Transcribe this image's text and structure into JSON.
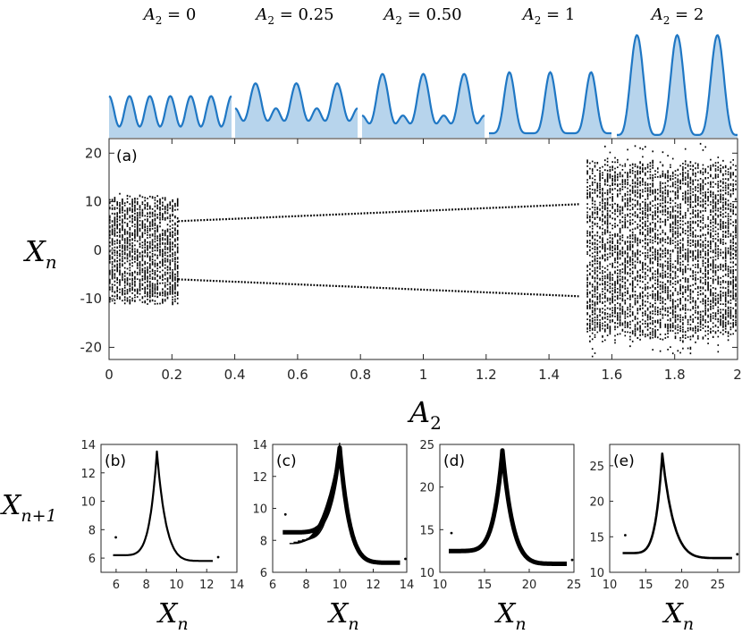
{
  "chart_data": [
    {
      "id": "bifurcation",
      "type": "scatter",
      "panel_label": "(a)",
      "xlabel": "A2",
      "ylabel": "Xn",
      "xlim": [
        0,
        2
      ],
      "ylim": [
        -22.5,
        23
      ],
      "xticks": [
        "0",
        "0.2",
        "0.4",
        "0.6",
        "0.8",
        "1",
        "1.2",
        "1.4",
        "1.6",
        "1.8",
        "2"
      ],
      "yticks": [
        "-20",
        "-10",
        "0",
        "10",
        "20"
      ],
      "regions": [
        {
          "kind": "chaotic",
          "x_range": [
            0,
            0.22
          ],
          "y_range": [
            -12,
            12
          ]
        },
        {
          "kind": "periodic-2",
          "x_range": [
            0.22,
            1.5
          ],
          "upper_y": [
            6,
            9.5
          ],
          "lower_y": [
            -6,
            -9.5
          ]
        },
        {
          "kind": "chaotic",
          "x_range": [
            1.52,
            2
          ],
          "y_range": [
            -22,
            24
          ]
        }
      ]
    },
    {
      "id": "profiles",
      "type": "area",
      "labels": [
        "A2 = 0",
        "A2 = 0.25",
        "A2 = 0.50",
        "A2 = 1",
        "A2 = 2"
      ],
      "a2_values": [
        0,
        0.25,
        0.5,
        1,
        2
      ],
      "line_color": "#1f77c4",
      "fill_color": "#b7d4ec"
    },
    {
      "id": "return-map-b",
      "type": "scatter",
      "panel_label": "(b)",
      "xlabel": "Xn",
      "ylabel": "Xn+1",
      "xlim": [
        5,
        14
      ],
      "ylim": [
        5,
        14
      ],
      "xticks": [
        "6",
        "8",
        "10",
        "12",
        "14"
      ],
      "yticks": [
        "6",
        "8",
        "10",
        "12",
        "14"
      ],
      "cusp": [
        8.7,
        13.5
      ],
      "left_end": [
        5.8,
        6.2
      ],
      "right_end": [
        12.4,
        5.8
      ]
    },
    {
      "id": "return-map-c",
      "type": "scatter",
      "panel_label": "(c)",
      "xlabel": "Xn",
      "ylabel": "Xn+1",
      "xlim": [
        6,
        14
      ],
      "ylim": [
        6,
        14
      ],
      "xticks": [
        "6",
        "8",
        "10",
        "12",
        "14"
      ],
      "yticks": [
        "6",
        "8",
        "10",
        "12",
        "14"
      ],
      "cusp": [
        10,
        13.8
      ],
      "left_end": [
        6.6,
        8.5
      ],
      "right_end": [
        13.6,
        6.6
      ]
    },
    {
      "id": "return-map-d",
      "type": "scatter",
      "panel_label": "(d)",
      "xlabel": "Xn",
      "ylabel": "Xn+1",
      "xlim": [
        10,
        25
      ],
      "ylim": [
        10,
        25
      ],
      "xticks": [
        "10",
        "15",
        "20",
        "25"
      ],
      "yticks": [
        "10",
        "15",
        "20",
        "25"
      ],
      "cusp": [
        17,
        24.3
      ],
      "left_end": [
        11,
        12.5
      ],
      "right_end": [
        24.2,
        11
      ]
    },
    {
      "id": "return-map-e",
      "type": "scatter",
      "panel_label": "(e)",
      "xlabel": "Xn",
      "ylabel": "Xn+1",
      "xlim": [
        10,
        28
      ],
      "ylim": [
        10,
        28
      ],
      "xticks": [
        "10",
        "15",
        "20",
        "25"
      ],
      "yticks": [
        "10",
        "15",
        "20",
        "25"
      ],
      "cusp": [
        17.3,
        26.7
      ],
      "left_end": [
        11.8,
        12.7
      ],
      "right_end": [
        27,
        12
      ]
    }
  ],
  "labels": {
    "A": "A",
    "sub2": "2",
    "X": "X",
    "subn": "n",
    "subn1": "n+1",
    "profile_values": [
      "0",
      "0.25",
      "0.50",
      "1",
      "2"
    ]
  }
}
